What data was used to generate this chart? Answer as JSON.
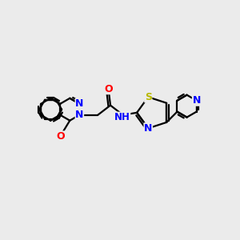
{
  "background_color": "#ebebeb",
  "bond_color": "#000000",
  "atom_colors": {
    "N": "#0000ff",
    "O": "#ff0000",
    "S": "#b8b800",
    "C": "#000000"
  },
  "font_size": 9.0,
  "bold": true,
  "figsize": [
    3.0,
    3.0
  ],
  "dpi": 100,
  "xlim": [
    0,
    10
  ],
  "ylim": [
    0,
    10
  ]
}
